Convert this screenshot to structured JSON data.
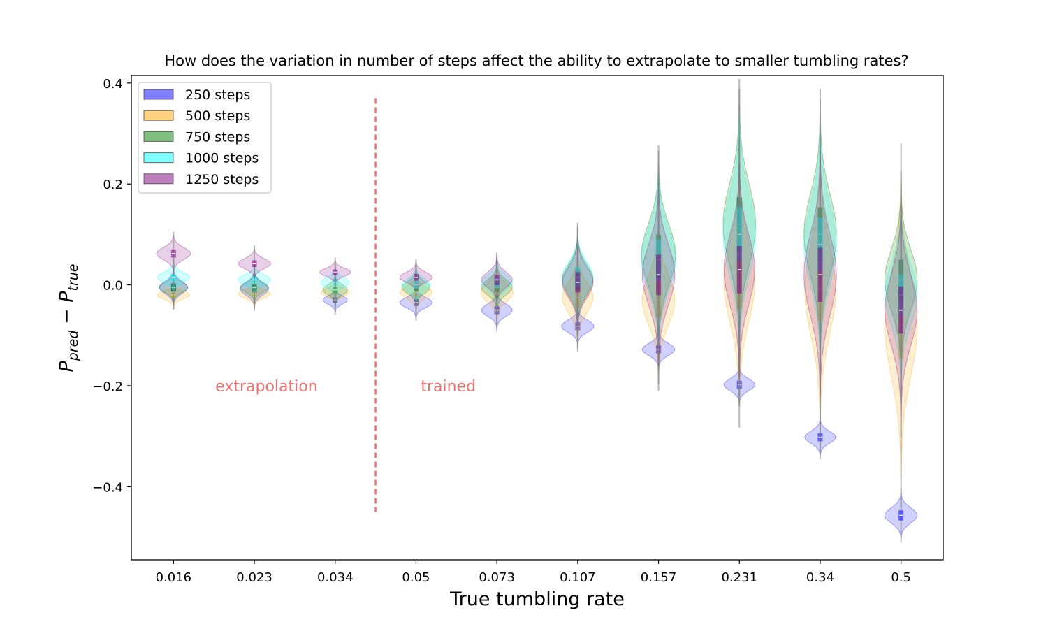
{
  "chart_data": {
    "type": "violin",
    "title": "How does the variation in number of steps affect the ability to extrapolate to smaller tumbling rates?",
    "xlabel": "True tumbling rate",
    "ylabel_main": "P",
    "ylabel_sub1": "pred",
    "ylabel_minus": " − ",
    "ylabel_sub2": "true",
    "ylim": [
      -0.545,
      0.415
    ],
    "yticks": [
      {
        "value": 0.4,
        "label": "0.4"
      },
      {
        "value": 0.2,
        "label": "0.2"
      },
      {
        "value": 0.0,
        "label": "0.0"
      },
      {
        "value": -0.2,
        "label": "−0.2"
      },
      {
        "value": -0.4,
        "label": "−0.4"
      }
    ],
    "categories": [
      "0.016",
      "0.023",
      "0.034",
      "0.05",
      "0.073",
      "0.107",
      "0.157",
      "0.231",
      "0.34",
      "0.5"
    ],
    "legend_position": "top-left",
    "annotations": {
      "left_label": "extrapolation",
      "right_label": "trained",
      "divider_color": "#f07070"
    },
    "series": [
      {
        "name": "250 steps",
        "color": "#0000ff",
        "median": [
          -0.005,
          -0.008,
          -0.03,
          -0.035,
          -0.05,
          -0.082,
          -0.128,
          -0.198,
          -0.302,
          -0.457
        ],
        "spread": [
          0.012,
          0.012,
          0.008,
          0.01,
          0.012,
          0.012,
          0.012,
          0.012,
          0.012,
          0.015
        ],
        "width": [
          0.35,
          0.35,
          0.3,
          0.4,
          0.38,
          0.4,
          0.4,
          0.38,
          0.38,
          0.4
        ]
      },
      {
        "name": "500 steps",
        "color": "#ffa500",
        "median": [
          -0.02,
          -0.018,
          -0.015,
          -0.015,
          -0.015,
          -0.025,
          -0.03,
          0.005,
          -0.01,
          -0.08
        ],
        "spread": [
          0.008,
          0.008,
          0.008,
          0.012,
          0.018,
          0.03,
          0.05,
          0.08,
          0.09,
          0.1
        ],
        "width": [
          0.4,
          0.4,
          0.35,
          0.4,
          0.4,
          0.38,
          0.4,
          0.38,
          0.38,
          0.4
        ]
      },
      {
        "name": "750 steps",
        "color": "#008000",
        "median": [
          -0.005,
          -0.005,
          -0.01,
          -0.005,
          -0.005,
          0.01,
          0.06,
          0.12,
          0.1,
          0.01
        ],
        "spread": [
          0.01,
          0.01,
          0.01,
          0.012,
          0.015,
          0.03,
          0.06,
          0.08,
          0.08,
          0.06
        ],
        "width": [
          0.35,
          0.35,
          0.3,
          0.35,
          0.38,
          0.38,
          0.42,
          0.4,
          0.4,
          0.4
        ]
      },
      {
        "name": "1000 steps",
        "color": "#00ffff",
        "median": [
          0.015,
          0.01,
          0.005,
          0.0,
          0.005,
          0.015,
          0.05,
          0.1,
          0.08,
          -0.02
        ],
        "spread": [
          0.01,
          0.01,
          0.01,
          0.012,
          0.015,
          0.03,
          0.06,
          0.08,
          0.08,
          0.06
        ],
        "width": [
          0.4,
          0.4,
          0.35,
          0.35,
          0.38,
          0.38,
          0.42,
          0.4,
          0.4,
          0.4
        ]
      },
      {
        "name": "1250 steps",
        "color": "#800080",
        "median": [
          0.062,
          0.042,
          0.025,
          0.015,
          0.01,
          0.005,
          0.02,
          0.03,
          0.02,
          -0.05
        ],
        "spread": [
          0.012,
          0.01,
          0.008,
          0.01,
          0.015,
          0.03,
          0.06,
          0.07,
          0.08,
          0.07
        ],
        "width": [
          0.42,
          0.4,
          0.38,
          0.4,
          0.38,
          0.38,
          0.4,
          0.38,
          0.4,
          0.4
        ]
      }
    ]
  }
}
